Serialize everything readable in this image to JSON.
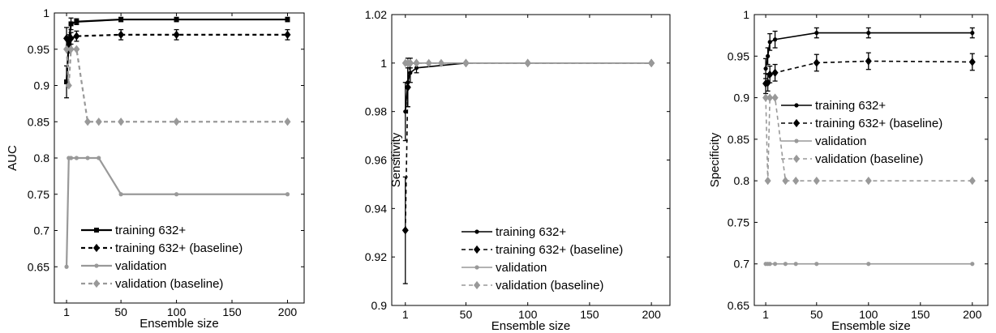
{
  "chart_data": [
    {
      "type": "line",
      "xlabel": "Ensemble size",
      "ylabel": "AUC",
      "xlim": [
        -10,
        215
      ],
      "ylim": [
        0.6,
        1.0
      ],
      "xticks": [
        1,
        50,
        100,
        150,
        200
      ],
      "yticks": [
        0.65,
        0.7,
        0.75,
        0.8,
        0.85,
        0.9,
        0.95,
        1
      ],
      "ytick_labels": [
        "0.65",
        "0.7",
        "0.75",
        "0.8",
        "0.85",
        "0.9",
        "0.95",
        "1"
      ],
      "legend_position": "lower-center",
      "x": [
        1,
        3,
        5,
        10,
        20,
        30,
        50,
        100,
        200
      ],
      "series": [
        {
          "name": "training 632+",
          "color": "#000000",
          "dash": "solid",
          "width": 2.2,
          "marker": "square",
          "values": [
            0.905,
            0.96,
            0.985,
            0.988,
            null,
            null,
            0.991,
            0.991,
            0.991
          ],
          "errors": [
            0.022,
            0.01,
            0.008,
            0.004,
            null,
            null,
            0.003,
            0.003,
            0.003
          ]
        },
        {
          "name": "training 632+ (baseline)",
          "color": "#000000",
          "dash": "dashed",
          "width": 2.2,
          "marker": "diamond",
          "values": [
            0.965,
            0.955,
            0.965,
            0.968,
            null,
            null,
            0.97,
            0.97,
            0.97
          ],
          "errors": [
            0.015,
            0.01,
            0.008,
            0.007,
            null,
            null,
            0.007,
            0.007,
            0.007
          ]
        },
        {
          "name": "validation",
          "color": "#999999",
          "dash": "solid",
          "width": 2.2,
          "marker": "dot",
          "values": [
            0.65,
            0.8,
            0.8,
            0.8,
            0.8,
            0.8,
            0.75,
            0.75,
            0.75
          ],
          "errors": null
        },
        {
          "name": "validation (baseline)",
          "color": "#999999",
          "dash": "dashed",
          "width": 2.2,
          "marker": "diamond",
          "values": [
            0.95,
            0.9,
            0.95,
            0.95,
            0.85,
            0.85,
            0.85,
            0.85,
            0.85
          ],
          "errors": null
        }
      ]
    },
    {
      "type": "line",
      "xlabel": "Ensemble size",
      "ylabel": "Sensitivity",
      "xlim": [
        -10,
        215
      ],
      "ylim": [
        0.9,
        1.02
      ],
      "xticks": [
        1,
        50,
        100,
        150,
        200
      ],
      "yticks": [
        0.9,
        0.92,
        0.94,
        0.96,
        0.98,
        1,
        1.02
      ],
      "ytick_labels": [
        "0.9",
        "0.92",
        "0.94",
        "0.96",
        "0.98",
        "1",
        "1.02"
      ],
      "legend_position": "lower-center",
      "x": [
        1,
        3,
        5,
        10,
        20,
        30,
        50,
        100,
        200
      ],
      "series": [
        {
          "name": "training 632+",
          "color": "#000000",
          "dash": "solid",
          "width": 1.6,
          "marker": "dot",
          "values": [
            0.98,
            0.992,
            0.996,
            0.998,
            null,
            null,
            1.0,
            1.0,
            1.0
          ],
          "errors": [
            0.012,
            0.01,
            0.004,
            0.002,
            null,
            null,
            0,
            0,
            0
          ]
        },
        {
          "name": "training 632+ (baseline)",
          "color": "#000000",
          "dash": "dashed",
          "width": 1.6,
          "marker": "diamond",
          "values": [
            0.931,
            0.99,
            1.0,
            1.0,
            null,
            null,
            1.0,
            1.0,
            1.0
          ],
          "errors": [
            0.022,
            0.008,
            0.002,
            0,
            null,
            null,
            0,
            0,
            0
          ]
        },
        {
          "name": "validation",
          "color": "#999999",
          "dash": "solid",
          "width": 1.6,
          "marker": "dot",
          "values": [
            1,
            1,
            1,
            1,
            1,
            1,
            1,
            1,
            1
          ],
          "errors": null
        },
        {
          "name": "validation (baseline)",
          "color": "#999999",
          "dash": "dashed",
          "width": 1.6,
          "marker": "diamond",
          "values": [
            1,
            1,
            1,
            1,
            1,
            1,
            1,
            1,
            1
          ],
          "errors": null
        }
      ]
    },
    {
      "type": "line",
      "xlabel": "Ensemble size",
      "ylabel": "Specificity",
      "xlim": [
        -10,
        215
      ],
      "ylim": [
        0.65,
        1.0
      ],
      "xticks": [
        1,
        50,
        100,
        150,
        200
      ],
      "yticks": [
        0.65,
        0.7,
        0.75,
        0.8,
        0.85,
        0.9,
        0.95,
        1
      ],
      "ytick_labels": [
        "0.65",
        "0.7",
        "0.75",
        "0.8",
        "0.85",
        "0.9",
        "0.95",
        "1"
      ],
      "legend_position": "upper-right",
      "x": [
        1,
        3,
        5,
        10,
        20,
        30,
        50,
        100,
        200
      ],
      "series": [
        {
          "name": "training 632+",
          "color": "#000000",
          "dash": "solid",
          "width": 1.6,
          "marker": "dot",
          "values": [
            0.935,
            0.95,
            0.967,
            0.97,
            null,
            null,
            0.978,
            0.978,
            0.978
          ],
          "errors": [
            0.012,
            0.01,
            0.01,
            0.01,
            null,
            null,
            0.006,
            0.006,
            0.006
          ]
        },
        {
          "name": "training 632+ (baseline)",
          "color": "#000000",
          "dash": "dashed",
          "width": 1.6,
          "marker": "diamond",
          "values": [
            0.917,
            0.918,
            0.928,
            0.93,
            null,
            null,
            0.942,
            0.944,
            0.943
          ],
          "errors": [
            0.012,
            0.01,
            0.01,
            0.01,
            null,
            null,
            0.01,
            0.01,
            0.01
          ]
        },
        {
          "name": "validation",
          "color": "#999999",
          "dash": "solid",
          "width": 1.6,
          "marker": "dot",
          "values": [
            0.7,
            0.7,
            0.7,
            0.7,
            0.7,
            0.7,
            0.7,
            0.7,
            0.7
          ],
          "errors": null
        },
        {
          "name": "validation (baseline)",
          "color": "#999999",
          "dash": "dashed",
          "width": 1.6,
          "marker": "diamond",
          "values": [
            0.9,
            0.8,
            0.9,
            0.9,
            0.8,
            0.8,
            0.8,
            0.8,
            0.8
          ],
          "errors": null
        }
      ]
    }
  ]
}
